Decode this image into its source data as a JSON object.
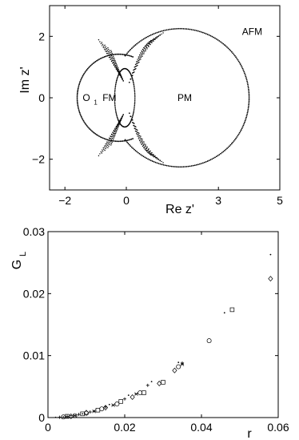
{
  "chart_data": [
    {
      "type": "scatter",
      "xlabel": "Re z'",
      "ylabel": "Im z'",
      "xlim": [
        -2.5,
        5
      ],
      "ylim": [
        -3,
        3
      ],
      "xticks": [
        "−2",
        "0",
        "3",
        "5"
      ],
      "xtick_values": [
        -2,
        0,
        3,
        5
      ],
      "yticks": [
        "−2",
        "0",
        "2"
      ],
      "ytick_values": [
        -2,
        0,
        2
      ],
      "grid": false,
      "labels": [
        {
          "text": "AFM",
          "x": 4.1,
          "y": 2.15
        },
        {
          "text": "O",
          "x": -1.3,
          "y": 0.0
        },
        {
          "text": "1",
          "x": -1.0,
          "y": -0.12
        },
        {
          "text": "FM",
          "x": -0.55,
          "y": 0.0
        },
        {
          "text": "PM",
          "x": 1.9,
          "y": 0.0
        }
      ],
      "curves": [
        {
          "name": "",
          "center": [
            1.75,
            0.0
          ],
          "radius": 2.25
        },
        {
          "name": "",
          "center": [
            -0.25,
            0.0
          ],
          "radius": 1.35
        }
      ]
    },
    {
      "type": "scatter",
      "xlabel": "r",
      "ylabel": "G",
      "ylabel_sub": "L",
      "xlim": [
        0,
        0.06
      ],
      "ylim": [
        0,
        0.03
      ],
      "xticks": [
        "0",
        "0.02",
        "0.04",
        "0.06"
      ],
      "xtick_values": [
        0,
        0.02,
        0.04,
        0.06
      ],
      "yticks": [
        "0",
        "0.01",
        "0.02",
        "0.03"
      ],
      "ytick_values": [
        0,
        0.01,
        0.02,
        0.03
      ],
      "grid": false,
      "series": [
        {
          "marker": "dot",
          "x": [
            0.002,
            0.004,
            0.006,
            0.009,
            0.012,
            0.016,
            0.021,
            0.027,
            0.034,
            0.046,
            0.058
          ],
          "y": [
            3e-05,
            0.0001,
            0.0003,
            0.0006,
            0.0011,
            0.0021,
            0.0036,
            0.0058,
            0.0089,
            0.0169,
            0.0263
          ]
        },
        {
          "marker": "plus",
          "x": [
            0.003,
            0.005,
            0.008,
            0.011,
            0.015,
            0.02,
            0.026,
            0.035
          ],
          "y": [
            5e-05,
            0.0002,
            0.0005,
            0.0009,
            0.0017,
            0.003,
            0.0052,
            0.0088
          ]
        },
        {
          "marker": "circle",
          "x": [
            0.004,
            0.007,
            0.01,
            0.014,
            0.018,
            0.024,
            0.034,
            0.042
          ],
          "y": [
            0.0001,
            0.0003,
            0.0007,
            0.0014,
            0.0022,
            0.004,
            0.0082,
            0.0124
          ]
        },
        {
          "marker": "square",
          "x": [
            0.005,
            0.009,
            0.013,
            0.019,
            0.025,
            0.03,
            0.048
          ],
          "y": [
            0.0002,
            0.0006,
            0.0012,
            0.0026,
            0.004,
            0.0057,
            0.0174
          ]
        },
        {
          "marker": "diamond",
          "x": [
            0.006,
            0.01,
            0.015,
            0.022,
            0.029,
            0.033,
            0.058
          ],
          "y": [
            0.0002,
            0.0008,
            0.0016,
            0.0033,
            0.0055,
            0.0076,
            0.0224
          ]
        },
        {
          "marker": "star",
          "x": [
            0.007,
            0.012,
            0.017,
            0.023,
            0.035
          ],
          "y": [
            0.0003,
            0.001,
            0.002,
            0.0038,
            0.0086
          ]
        }
      ]
    }
  ]
}
